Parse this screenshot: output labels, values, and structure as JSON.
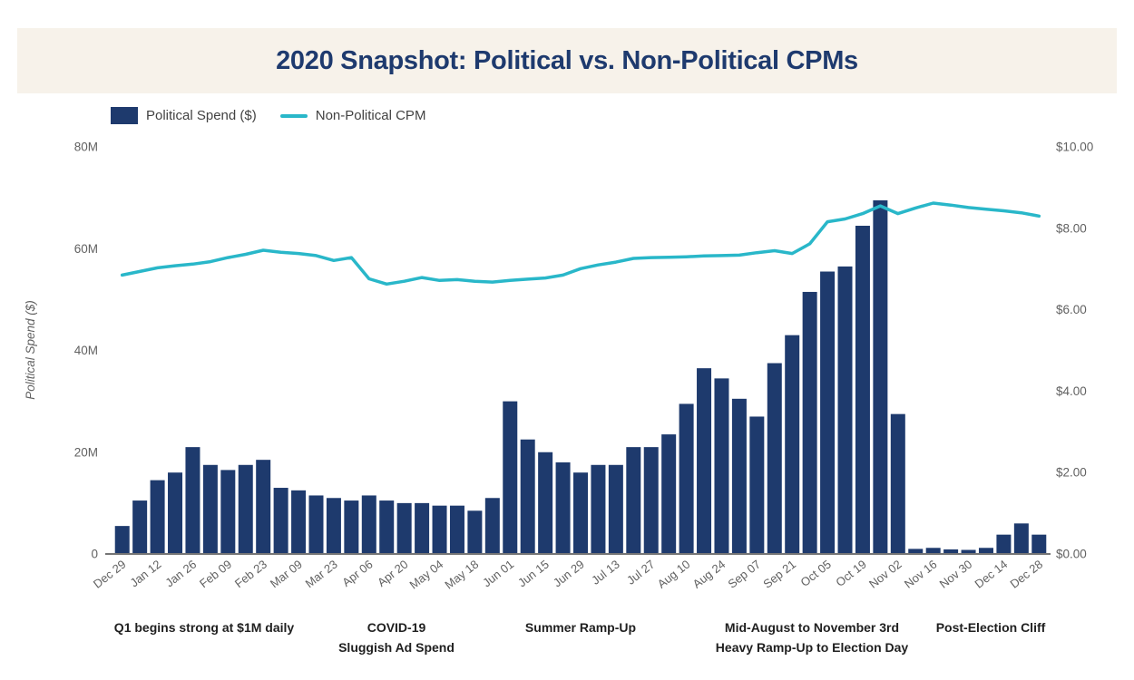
{
  "banner": {
    "title": "2020 Snapshot: Political vs. Non-Political CPMs",
    "bg_color": "#f7f2ea",
    "title_color": "#1e3a6e"
  },
  "legend": {
    "items": [
      {
        "label": "Political Spend ($)",
        "swatch": "bar-swatch",
        "color": "#1e3a6d"
      },
      {
        "label": "Non-Political CPM",
        "swatch": "line-swatch",
        "color": "#29b7c9"
      }
    ]
  },
  "chart_data": {
    "type": "bar",
    "title": "2020 Snapshot: Political vs. Non-Political CPMs",
    "weeks": 53,
    "tick_every": 2,
    "x_tick_labels": [
      "Dec 29",
      "Jan 12",
      "Jan 26",
      "Feb 09",
      "Feb 23",
      "Mar 09",
      "Mar 23",
      "Apr 06",
      "Apr 20",
      "May 04",
      "May 18",
      "Jun 01",
      "Jun 15",
      "Jun 29",
      "Jul 13",
      "Jul 27",
      "Aug 10",
      "Aug 24",
      "Sep 07",
      "Sep 21",
      "Oct 05",
      "Oct 19",
      "Nov 02",
      "Nov 16",
      "Nov 30",
      "Dec 14",
      "Dec 28"
    ],
    "series": [
      {
        "name": "Political Spend ($)",
        "kind": "bar",
        "axis": "left",
        "color": "#1e3a6d",
        "unit": "millions_usd",
        "values": [
          5.5,
          10.5,
          14.5,
          16,
          21,
          17.5,
          16.5,
          17.5,
          18.5,
          13,
          12.5,
          11.5,
          11,
          10.5,
          11.5,
          10.5,
          10,
          10,
          9.5,
          9.5,
          8.5,
          11,
          30,
          22.5,
          20,
          18,
          16,
          17.5,
          17.5,
          21,
          21,
          23.5,
          29.5,
          36.5,
          34.5,
          30.5,
          27,
          37.5,
          43,
          51.5,
          55.5,
          56.5,
          64.5,
          69.5,
          27.5,
          1,
          1.2,
          0.9,
          0.8,
          1.2,
          3.8,
          6,
          3.8
        ]
      },
      {
        "name": "Non-Political CPM",
        "kind": "line",
        "axis": "right",
        "color": "#29b7c9",
        "unit": "usd",
        "values": [
          6.85,
          6.94,
          7.03,
          7.08,
          7.12,
          7.18,
          7.28,
          7.36,
          7.46,
          7.41,
          7.38,
          7.33,
          7.21,
          7.28,
          6.76,
          6.63,
          6.7,
          6.79,
          6.72,
          6.74,
          6.7,
          6.68,
          6.72,
          6.75,
          6.78,
          6.85,
          7.01,
          7.1,
          7.17,
          7.26,
          7.28,
          7.29,
          7.3,
          7.32,
          7.33,
          7.34,
          7.4,
          7.45,
          7.38,
          7.62,
          8.16,
          8.23,
          8.36,
          8.55,
          8.36,
          8.5,
          8.62,
          8.57,
          8.51,
          8.47,
          8.43,
          8.38,
          8.3
        ]
      }
    ],
    "left_axis": {
      "title": "Political Spend ($)",
      "tick_labels": [
        "0",
        "20M",
        "40M",
        "60M",
        "80M"
      ],
      "tick_values": [
        0,
        20,
        40,
        60,
        80
      ],
      "range": [
        0,
        80
      ]
    },
    "right_axis": {
      "tick_labels": [
        "$0.00",
        "$2.00",
        "$4.00",
        "$6.00",
        "$8.00",
        "$10.00"
      ],
      "tick_values": [
        0,
        2,
        4,
        6,
        8,
        10
      ],
      "range": [
        0,
        10
      ]
    },
    "grid": false,
    "legend_position": "top-left"
  },
  "annotations": [
    {
      "line1": "Q1 begins strong at $1M daily",
      "line2": ""
    },
    {
      "line1": "COVID-19",
      "line2": "Sluggish Ad Spend"
    },
    {
      "line1": "Summer Ramp-Up",
      "line2": ""
    },
    {
      "line1": "Mid-August to November 3rd",
      "line2": "Heavy Ramp-Up to Election Day"
    },
    {
      "line1": "Post-Election Cliff",
      "line2": ""
    }
  ],
  "colors": {
    "bar_navy": "#1e3a6d",
    "line_teal": "#29b7c9",
    "axis_text": "#616161",
    "axis_line": "#757575",
    "annotation_text": "#1f1f1f"
  }
}
